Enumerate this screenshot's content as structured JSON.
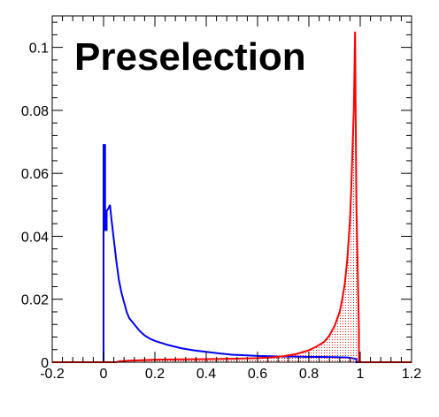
{
  "chart_data": {
    "type": "line",
    "title": "Preselection",
    "xlabel": "",
    "ylabel": "",
    "xlim": [
      -0.2,
      1.2
    ],
    "ylim": [
      0,
      0.11
    ],
    "x_ticks": [
      -0.2,
      0,
      0.2,
      0.4,
      0.6,
      0.8,
      1,
      1.2
    ],
    "x_tick_labels": [
      "-0.2",
      "0",
      "0.2",
      "0.4",
      "0.6",
      "0.8",
      "1",
      "1.2"
    ],
    "y_ticks": [
      0,
      0.02,
      0.04,
      0.06,
      0.08,
      0.1
    ],
    "y_tick_labels": [
      "0",
      "0.02",
      "0.04",
      "0.06",
      "0.08",
      "0.1"
    ],
    "grid": false,
    "series": [
      {
        "color": "#0000ff",
        "fill": false,
        "points": [
          [
            -0.2,
            0
          ],
          [
            0.0,
            0
          ],
          [
            0.0,
            0.069
          ],
          [
            0.006,
            0.069
          ],
          [
            0.006,
            0.042
          ],
          [
            0.012,
            0.042
          ],
          [
            0.012,
            0.048
          ],
          [
            0.02,
            0.049
          ],
          [
            0.025,
            0.05
          ],
          [
            0.03,
            0.046
          ],
          [
            0.04,
            0.039
          ],
          [
            0.05,
            0.032
          ],
          [
            0.06,
            0.026
          ],
          [
            0.07,
            0.022
          ],
          [
            0.08,
            0.019
          ],
          [
            0.09,
            0.016
          ],
          [
            0.1,
            0.014
          ],
          [
            0.12,
            0.012
          ],
          [
            0.14,
            0.01
          ],
          [
            0.16,
            0.0085
          ],
          [
            0.18,
            0.0075
          ],
          [
            0.2,
            0.0068
          ],
          [
            0.25,
            0.0055
          ],
          [
            0.3,
            0.0045
          ],
          [
            0.35,
            0.0038
          ],
          [
            0.4,
            0.0033
          ],
          [
            0.45,
            0.0028
          ],
          [
            0.5,
            0.0024
          ],
          [
            0.55,
            0.0022
          ],
          [
            0.6,
            0.002
          ],
          [
            0.65,
            0.0019
          ],
          [
            0.7,
            0.0018
          ],
          [
            0.75,
            0.0018
          ],
          [
            0.8,
            0.0017
          ],
          [
            0.85,
            0.0017
          ],
          [
            0.9,
            0.0016
          ],
          [
            0.95,
            0.0015
          ],
          [
            0.975,
            0.0012
          ],
          [
            0.985,
            0.001
          ],
          [
            0.985,
            0
          ],
          [
            1.2,
            0
          ]
        ]
      },
      {
        "color": "#ff0000",
        "fill": true,
        "points": [
          [
            -0.2,
            0
          ],
          [
            0.05,
            0
          ],
          [
            0.06,
            0.0003
          ],
          [
            0.1,
            0.0005
          ],
          [
            0.2,
            0.0008
          ],
          [
            0.3,
            0.0009
          ],
          [
            0.4,
            0.001
          ],
          [
            0.5,
            0.0011
          ],
          [
            0.6,
            0.0013
          ],
          [
            0.65,
            0.0015
          ],
          [
            0.7,
            0.0019
          ],
          [
            0.75,
            0.0026
          ],
          [
            0.8,
            0.0038
          ],
          [
            0.83,
            0.005
          ],
          [
            0.86,
            0.0065
          ],
          [
            0.88,
            0.0085
          ],
          [
            0.9,
            0.0115
          ],
          [
            0.92,
            0.016
          ],
          [
            0.93,
            0.02
          ],
          [
            0.94,
            0.025
          ],
          [
            0.95,
            0.033
          ],
          [
            0.96,
            0.045
          ],
          [
            0.965,
            0.055
          ],
          [
            0.97,
            0.068
          ],
          [
            0.975,
            0.08
          ],
          [
            0.98,
            0.105
          ],
          [
            0.985,
            0.05
          ],
          [
            0.99,
            0.03
          ],
          [
            0.995,
            0.01
          ],
          [
            0.995,
            0
          ],
          [
            1.2,
            0
          ]
        ]
      }
    ]
  }
}
